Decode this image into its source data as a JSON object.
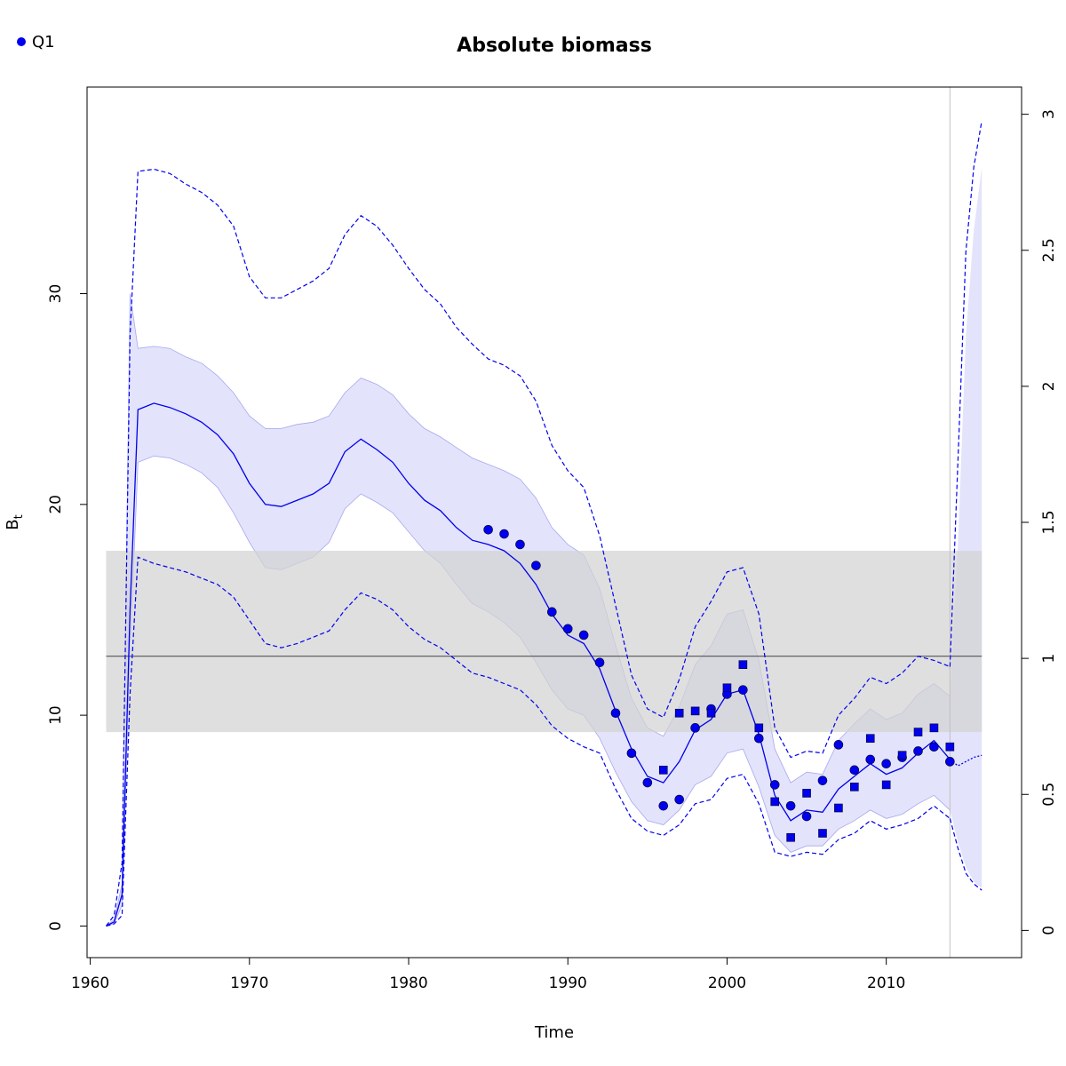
{
  "chart_data": {
    "type": "line",
    "title": "Absolute biomass",
    "xlabel": "Time",
    "ylabel_main": "B",
    "ylabel_sub": "t",
    "xlim": [
      1959.8,
      2018.5
    ],
    "ylim": [
      -1.5,
      39.8
    ],
    "ylim_right": [
      -0.1,
      3.1
    ],
    "x_ticks": [
      1960,
      1970,
      1980,
      1990,
      2000,
      2010
    ],
    "x_tick_labels": [
      "1960",
      "1970",
      "1980",
      "1990",
      "2000",
      "2010"
    ],
    "y_ticks": [
      0,
      10,
      20,
      30
    ],
    "y_tick_labels": [
      "0",
      "10",
      "20",
      "30"
    ],
    "y_right_ticks": [
      0,
      0.5,
      1,
      1.5,
      2,
      2.5,
      3
    ],
    "y_right_tick_labels": [
      "0",
      "0.5",
      "1",
      "1.5",
      "2",
      "2.5",
      "3"
    ],
    "legend": {
      "position": "top-left",
      "entries": [
        {
          "label": "Q1",
          "marker": "circle",
          "color": "#0000ee"
        }
      ]
    },
    "colors": {
      "main": "#0000ee",
      "band": "#e3e3fb",
      "band_edge": "#a8a8f0",
      "ref_band": "#d3d3d3",
      "ref_line": "#555555",
      "vline": "#c0c0c0"
    },
    "reference_band": {
      "y_range": [
        9.2,
        17.8
      ],
      "x_range": [
        1961,
        2016
      ],
      "line_y": 12.8
    },
    "vline_x": 2014,
    "estimate": {
      "x": [
        1961,
        1961.5,
        1962,
        1962.5,
        1963,
        1964,
        1965,
        1966,
        1967,
        1968,
        1969,
        1970,
        1971,
        1972,
        1973,
        1974,
        1975,
        1976,
        1977,
        1978,
        1979,
        1980,
        1981,
        1982,
        1983,
        1984,
        1985,
        1986,
        1987,
        1988,
        1989,
        1990,
        1991,
        1992,
        1993,
        1994,
        1995,
        1996,
        1997,
        1998,
        1999,
        2000,
        2001,
        2002,
        2003,
        2004,
        2005,
        2006,
        2007,
        2008,
        2009,
        2010,
        2011,
        2012,
        2013,
        2014
      ],
      "y": [
        0,
        0.2,
        1.5,
        15,
        24.5,
        24.8,
        24.6,
        24.3,
        23.9,
        23.3,
        22.4,
        21,
        20,
        19.9,
        20.2,
        20.5,
        21,
        22.5,
        23.1,
        22.6,
        22,
        21,
        20.2,
        19.7,
        18.9,
        18.3,
        18.1,
        17.8,
        17.2,
        16.2,
        14.8,
        13.8,
        13.4,
        12.2,
        10.2,
        8.4,
        7.1,
        6.8,
        7.8,
        9.3,
        9.8,
        11,
        11.2,
        9.1,
        6.2,
        5,
        5.5,
        5.4,
        6.5,
        7.1,
        7.7,
        7.2,
        7.5,
        8.2,
        8.8,
        7.9
      ],
      "band_lower": [
        0,
        0.1,
        1,
        13,
        22,
        22.3,
        22.2,
        21.9,
        21.5,
        20.8,
        19.6,
        18.2,
        17,
        16.9,
        17.2,
        17.5,
        18.2,
        19.8,
        20.5,
        20.1,
        19.6,
        18.7,
        17.8,
        17.2,
        16.2,
        15.3,
        14.9,
        14.4,
        13.7,
        12.5,
        11.2,
        10.3,
        10,
        8.9,
        7.3,
        5.9,
        5,
        4.8,
        5.5,
        6.7,
        7.1,
        8.2,
        8.4,
        6.6,
        4.3,
        3.5,
        3.8,
        3.8,
        4.6,
        5,
        5.5,
        5.1,
        5.3,
        5.8,
        6.2,
        5.5
      ],
      "band_upper": [
        0,
        0.3,
        2,
        30,
        27.4,
        27.5,
        27.4,
        27,
        26.7,
        26.1,
        25.3,
        24.2,
        23.6,
        23.6,
        23.8,
        23.9,
        24.2,
        25.3,
        26,
        25.7,
        25.2,
        24.3,
        23.6,
        23.2,
        22.7,
        22.2,
        21.9,
        21.6,
        21.2,
        20.3,
        18.9,
        18.1,
        17.6,
        16,
        13.3,
        10.8,
        9.4,
        9,
        10.4,
        12.4,
        13.3,
        14.8,
        15,
        12.6,
        8.4,
        6.8,
        7.3,
        7.2,
        8.8,
        9.6,
        10.3,
        9.8,
        10.1,
        11,
        11.5,
        10.9
      ],
      "ci_lower": [
        0,
        0.1,
        0.5,
        11,
        17.5,
        17.2,
        17,
        16.8,
        16.5,
        16.2,
        15.6,
        14.5,
        13.4,
        13.2,
        13.4,
        13.7,
        14,
        15,
        15.8,
        15.5,
        15,
        14.2,
        13.6,
        13.2,
        12.6,
        12,
        11.8,
        11.5,
        11.2,
        10.5,
        9.5,
        8.9,
        8.5,
        8.2,
        6.5,
        5.1,
        4.5,
        4.3,
        4.8,
        5.8,
        6,
        7,
        7.2,
        5.8,
        3.5,
        3.3,
        3.5,
        3.4,
        4.1,
        4.4,
        5,
        4.6,
        4.8,
        5.1,
        5.7,
        5.1
      ],
      "ci_upper": [
        0,
        0.5,
        3,
        28,
        35.8,
        35.9,
        35.7,
        35.2,
        34.8,
        34.2,
        33.2,
        30.8,
        29.8,
        29.8,
        30.2,
        30.6,
        31.2,
        32.8,
        33.7,
        33.2,
        32.3,
        31.2,
        30.2,
        29.5,
        28.4,
        27.6,
        26.9,
        26.6,
        26.1,
        24.9,
        22.8,
        21.6,
        20.8,
        18.5,
        15.2,
        11.9,
        10.3,
        9.9,
        11.7,
        14.2,
        15.4,
        16.8,
        17,
        14.8,
        9.4,
        8,
        8.3,
        8.2,
        10,
        10.8,
        11.8,
        11.5,
        12,
        12.8,
        12.6,
        12.3
      ]
    },
    "forecast": {
      "x": [
        2014,
        2014.5,
        2015,
        2015.5,
        2016
      ],
      "y": [
        7.9,
        7.6,
        7.8,
        8,
        8.1
      ],
      "band_lower": [
        5.5,
        4,
        2.8,
        2.1,
        1.8
      ],
      "band_upper": [
        10.9,
        18,
        28,
        33,
        36
      ],
      "ci_lower": [
        5.1,
        3.7,
        2.5,
        2,
        1.7
      ],
      "ci_upper": [
        12.3,
        22,
        32,
        36,
        38.2
      ]
    },
    "series": [
      {
        "name": "Q1",
        "marker": "circle",
        "points": [
          {
            "x": 1985,
            "y": 18.8
          },
          {
            "x": 1986,
            "y": 18.6
          },
          {
            "x": 1987,
            "y": 18.1
          },
          {
            "x": 1988,
            "y": 17.1
          },
          {
            "x": 1989,
            "y": 14.9
          },
          {
            "x": 1990,
            "y": 14.1
          },
          {
            "x": 1991,
            "y": 13.8
          },
          {
            "x": 1992,
            "y": 12.5
          },
          {
            "x": 1993,
            "y": 10.1
          },
          {
            "x": 1994,
            "y": 8.2
          },
          {
            "x": 1995,
            "y": 6.8
          },
          {
            "x": 1996,
            "y": 5.7
          },
          {
            "x": 1997,
            "y": 6
          },
          {
            "x": 1998,
            "y": 9.4
          },
          {
            "x": 1999,
            "y": 10.3
          },
          {
            "x": 2000,
            "y": 11
          },
          {
            "x": 2001,
            "y": 11.2
          },
          {
            "x": 2002,
            "y": 8.9
          },
          {
            "x": 2003,
            "y": 6.7
          },
          {
            "x": 2004,
            "y": 5.7
          },
          {
            "x": 2005,
            "y": 5.2
          },
          {
            "x": 2006,
            "y": 6.9
          },
          {
            "x": 2007,
            "y": 8.6
          },
          {
            "x": 2008,
            "y": 7.4
          },
          {
            "x": 2009,
            "y": 7.9
          },
          {
            "x": 2010,
            "y": 7.7
          },
          {
            "x": 2011,
            "y": 8
          },
          {
            "x": 2012,
            "y": 8.3
          },
          {
            "x": 2013,
            "y": 8.5
          },
          {
            "x": 2014,
            "y": 7.8
          }
        ]
      },
      {
        "name": "",
        "marker": "square",
        "points": [
          {
            "x": 1996,
            "y": 7.4
          },
          {
            "x": 1997,
            "y": 10.1
          },
          {
            "x": 1998,
            "y": 10.2
          },
          {
            "x": 1999,
            "y": 10.1
          },
          {
            "x": 2000,
            "y": 11.3
          },
          {
            "x": 2001,
            "y": 12.4
          },
          {
            "x": 2002,
            "y": 9.4
          },
          {
            "x": 2003,
            "y": 5.9
          },
          {
            "x": 2004,
            "y": 4.2
          },
          {
            "x": 2005,
            "y": 6.3
          },
          {
            "x": 2006,
            "y": 4.4
          },
          {
            "x": 2007,
            "y": 5.6
          },
          {
            "x": 2008,
            "y": 6.6
          },
          {
            "x": 2009,
            "y": 8.9
          },
          {
            "x": 2010,
            "y": 6.7
          },
          {
            "x": 2011,
            "y": 8.1
          },
          {
            "x": 2012,
            "y": 9.2
          },
          {
            "x": 2013,
            "y": 9.4
          },
          {
            "x": 2014,
            "y": 8.5
          }
        ]
      }
    ]
  }
}
